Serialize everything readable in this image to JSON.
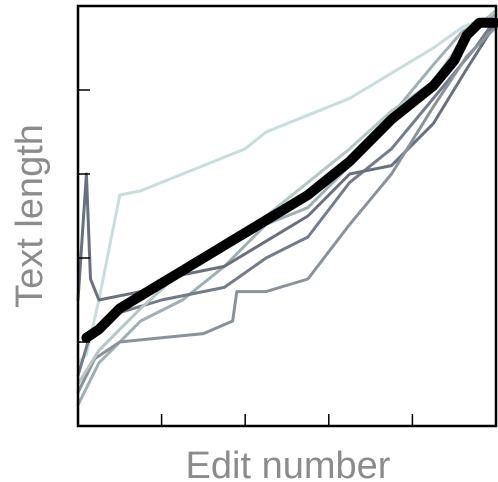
{
  "chart_data": {
    "type": "line",
    "title": "",
    "xlabel": "Edit number",
    "ylabel": "Text length",
    "xlim": [
      0,
      1
    ],
    "ylim": [
      0,
      1
    ],
    "x_tick_values": [
      0.2,
      0.4,
      0.6,
      0.8
    ],
    "y_tick_values": [
      0.2,
      0.4,
      0.6,
      0.8
    ],
    "tick_labels_shown": false,
    "grid": false,
    "legend": "none",
    "series": [
      {
        "color": "#c8dede",
        "values": [
          [
            0,
            0.15
          ],
          [
            0.02,
            0.17
          ],
          [
            0.05,
            0.3
          ],
          [
            0.1,
            0.55
          ],
          [
            0.15,
            0.56
          ],
          [
            0.2,
            0.58
          ],
          [
            0.3,
            0.62
          ],
          [
            0.4,
            0.66
          ],
          [
            0.45,
            0.7
          ],
          [
            0.55,
            0.74
          ],
          [
            0.65,
            0.78
          ],
          [
            0.75,
            0.84
          ],
          [
            0.85,
            0.9
          ],
          [
            0.92,
            0.95
          ],
          [
            1.0,
            0.98
          ]
        ]
      },
      {
        "color": "#9fb0b5",
        "values": [
          [
            0,
            0.05
          ],
          [
            0.05,
            0.15
          ],
          [
            0.15,
            0.25
          ],
          [
            0.25,
            0.3
          ],
          [
            0.35,
            0.38
          ],
          [
            0.45,
            0.48
          ],
          [
            0.55,
            0.52
          ],
          [
            0.65,
            0.62
          ],
          [
            0.75,
            0.74
          ],
          [
            0.85,
            0.86
          ],
          [
            0.92,
            0.94
          ],
          [
            1.0,
            0.98
          ]
        ]
      },
      {
        "color": "#737b8c",
        "values": [
          [
            0,
            0.12
          ],
          [
            0.03,
            0.22
          ],
          [
            0.1,
            0.27
          ],
          [
            0.2,
            0.3
          ],
          [
            0.35,
            0.33
          ],
          [
            0.45,
            0.4
          ],
          [
            0.55,
            0.45
          ],
          [
            0.65,
            0.58
          ],
          [
            0.75,
            0.66
          ],
          [
            0.85,
            0.78
          ],
          [
            0.95,
            0.9
          ],
          [
            1.0,
            0.97
          ]
        ]
      },
      {
        "color": "#6a7080",
        "values": [
          [
            0,
            0.3
          ],
          [
            0.02,
            0.6
          ],
          [
            0.03,
            0.35
          ],
          [
            0.05,
            0.3
          ],
          [
            0.15,
            0.32
          ],
          [
            0.25,
            0.36
          ],
          [
            0.35,
            0.38
          ],
          [
            0.45,
            0.44
          ],
          [
            0.55,
            0.5
          ],
          [
            0.65,
            0.6
          ],
          [
            0.75,
            0.62
          ],
          [
            0.85,
            0.72
          ],
          [
            0.93,
            0.85
          ],
          [
            1.0,
            0.96
          ]
        ]
      },
      {
        "color": "#8a929c",
        "values": [
          [
            0,
            0.08
          ],
          [
            0.04,
            0.16
          ],
          [
            0.1,
            0.2
          ],
          [
            0.2,
            0.21
          ],
          [
            0.3,
            0.22
          ],
          [
            0.37,
            0.25
          ],
          [
            0.38,
            0.32
          ],
          [
            0.45,
            0.32
          ],
          [
            0.55,
            0.35
          ],
          [
            0.65,
            0.48
          ],
          [
            0.75,
            0.6
          ],
          [
            0.85,
            0.76
          ],
          [
            0.93,
            0.88
          ],
          [
            1.0,
            0.95
          ]
        ]
      },
      {
        "color": "#b4c6c6",
        "values": [
          [
            0,
            0.1
          ],
          [
            0.05,
            0.18
          ],
          [
            0.15,
            0.28
          ],
          [
            0.25,
            0.37
          ],
          [
            0.35,
            0.44
          ],
          [
            0.45,
            0.5
          ],
          [
            0.55,
            0.58
          ],
          [
            0.65,
            0.66
          ],
          [
            0.75,
            0.75
          ],
          [
            0.85,
            0.82
          ],
          [
            0.92,
            0.92
          ],
          [
            1.0,
            0.99
          ]
        ]
      },
      {
        "color": "#000000",
        "values": [
          [
            0.02,
            0.21
          ],
          [
            0.05,
            0.23
          ],
          [
            0.1,
            0.28
          ],
          [
            0.15,
            0.31
          ],
          [
            0.2,
            0.34
          ],
          [
            0.25,
            0.37
          ],
          [
            0.3,
            0.4
          ],
          [
            0.35,
            0.43
          ],
          [
            0.4,
            0.46
          ],
          [
            0.45,
            0.49
          ],
          [
            0.5,
            0.52
          ],
          [
            0.55,
            0.55
          ],
          [
            0.6,
            0.59
          ],
          [
            0.65,
            0.63
          ],
          [
            0.7,
            0.68
          ],
          [
            0.75,
            0.73
          ],
          [
            0.8,
            0.77
          ],
          [
            0.85,
            0.81
          ],
          [
            0.9,
            0.87
          ],
          [
            0.93,
            0.93
          ],
          [
            0.96,
            0.96
          ],
          [
            1.0,
            0.96
          ]
        ]
      }
    ]
  }
}
